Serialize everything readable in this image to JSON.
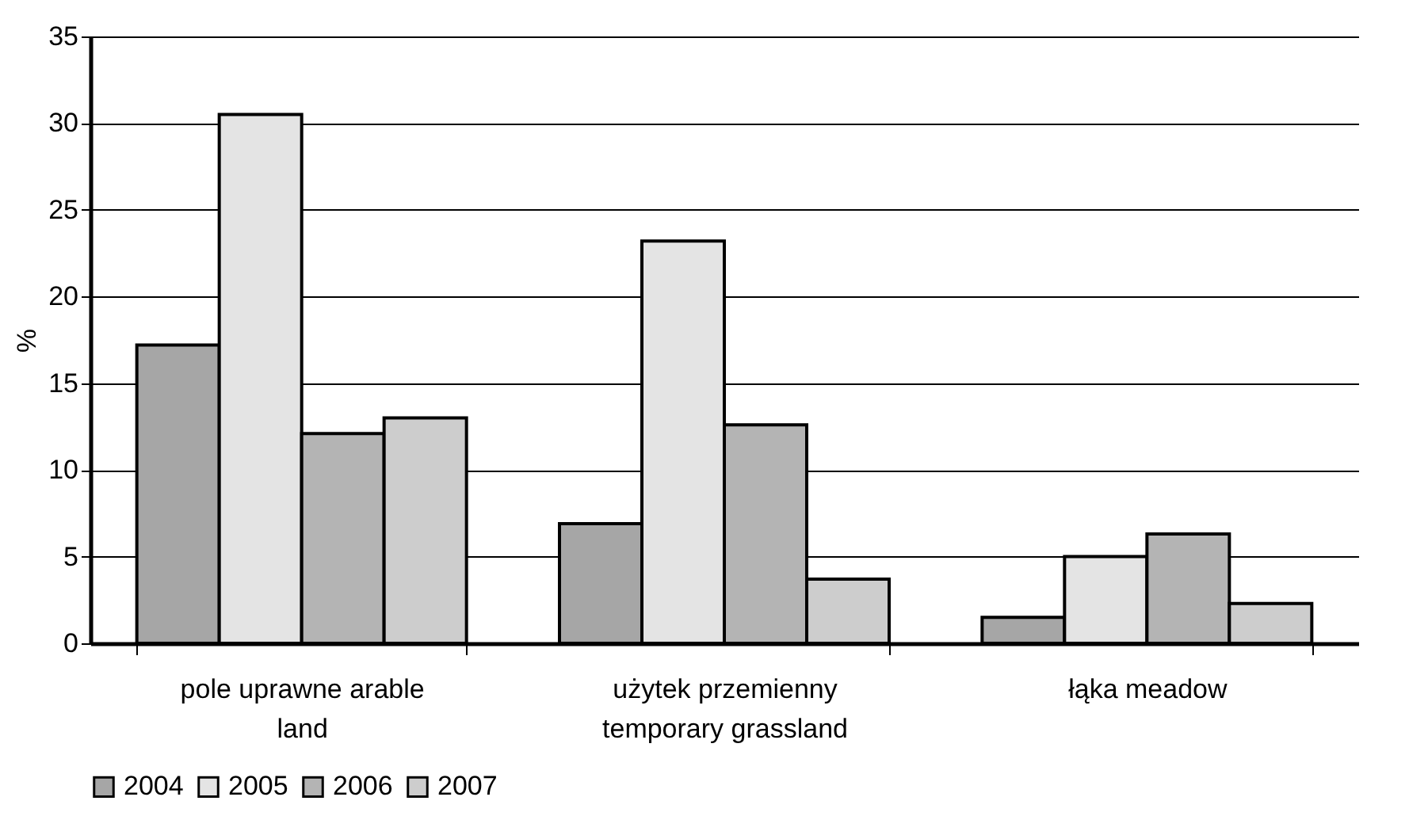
{
  "chart_data": {
    "type": "bar",
    "ylabel": "%",
    "categories": [
      "pole uprawne      arable\nland",
      "użytek przemienny\ntemporary grassland",
      "łąka  meadow"
    ],
    "series": [
      {
        "name": "2004",
        "color": "#a6a6a6",
        "values": [
          17.2,
          6.9,
          1.5
        ]
      },
      {
        "name": "2005",
        "color": "#e4e4e4",
        "values": [
          30.5,
          23.2,
          5.0
        ]
      },
      {
        "name": "2006",
        "color": "#b4b4b4",
        "values": [
          12.1,
          12.6,
          6.3
        ]
      },
      {
        "name": "2007",
        "color": "#cdcdcd",
        "values": [
          13.0,
          3.7,
          2.3
        ]
      }
    ],
    "ylim": [
      0,
      35
    ],
    "yticks": [
      0,
      5,
      10,
      15,
      20,
      25,
      30,
      35
    ],
    "grid": "y",
    "legend": "bottom"
  }
}
